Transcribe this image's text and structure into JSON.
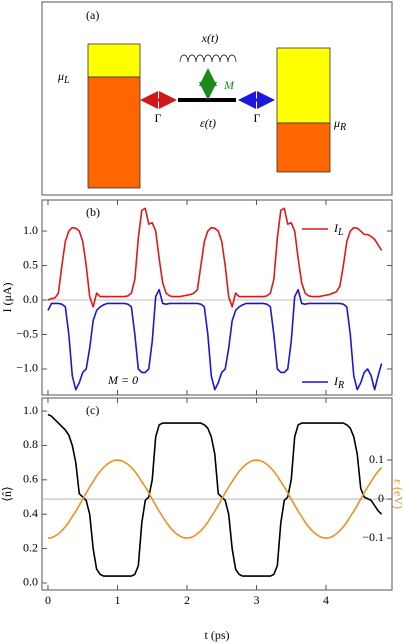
{
  "diagram": {
    "panel_label": "(a)",
    "coord": "x(t)",
    "coupling": "M",
    "level": "ε(t)",
    "gamma_left": "Γ",
    "gamma_right": "Γ",
    "mu_L": {
      "text": "μ",
      "sub": "L"
    },
    "mu_R": {
      "text": "μ",
      "sub": "R"
    }
  },
  "chart_data": [
    {
      "type": "line",
      "panel_label": "(b)",
      "ylabel": "I (μA)",
      "annotation": "M = 0",
      "xlim": [
        -0.086,
        4.95
      ],
      "xticks": [
        0,
        1,
        2,
        3,
        4
      ],
      "xtick_labels": false,
      "ylim": [
        -1.377,
        1.45
      ],
      "yticks": [
        {
          "value": -1,
          "label": "−1.0"
        },
        {
          "value": -0.5,
          "label": "−0.5"
        },
        {
          "value": 0,
          "label": "0.0"
        },
        {
          "value": 0.5,
          "label": "0.5"
        },
        {
          "value": 1,
          "label": "1.0"
        }
      ],
      "zero_line": true,
      "x": [
        0,
        0.05,
        0.1,
        0.15,
        0.2,
        0.25,
        0.3,
        0.35,
        0.4,
        0.45,
        0.5,
        0.55,
        0.6,
        0.65,
        0.7,
        0.75,
        0.8,
        0.85,
        0.9,
        0.95,
        1,
        1.05,
        1.1,
        1.15,
        1.2,
        1.25,
        1.3,
        1.35,
        1.4,
        1.45,
        1.5,
        1.55,
        1.6,
        1.65,
        1.7,
        1.75,
        1.8,
        1.85,
        1.9,
        1.95,
        2,
        2.05,
        2.1,
        2.15,
        2.2,
        2.25,
        2.3,
        2.35,
        2.4,
        2.45,
        2.5,
        2.55,
        2.6,
        2.65,
        2.7,
        2.75,
        2.8,
        2.85,
        2.9,
        2.95,
        3,
        3.05,
        3.1,
        3.15,
        3.2,
        3.25,
        3.3,
        3.35,
        3.4,
        3.45,
        3.5,
        3.55,
        3.6,
        3.65,
        3.7,
        3.75,
        3.8,
        3.85,
        3.9,
        3.95,
        4,
        4.05,
        4.1,
        4.15,
        4.2,
        4.25,
        4.3,
        4.35,
        4.4,
        4.45,
        4.5,
        4.55,
        4.6,
        4.65,
        4.7,
        4.75,
        4.8
      ],
      "series": [
        {
          "name": "I",
          "sub": "L",
          "color": "#e01818",
          "legend_loc": "upper right",
          "values": [
            0,
            0.02,
            0.03,
            0.1,
            0.5,
            0.85,
            1.0,
            1.05,
            1.04,
            1.0,
            0.85,
            0.5,
            0.05,
            -0.1,
            0.1,
            0.05,
            0.05,
            0.05,
            0.05,
            0.05,
            0.05,
            0.05,
            0.05,
            0.06,
            0.1,
            0.3,
            0.9,
            1.3,
            1.33,
            1.1,
            1.12,
            1.0,
            0.6,
            0.25,
            0.1,
            0.06,
            0.05,
            0.05,
            0.05,
            0.06,
            0.07,
            0.08,
            0.1,
            0.15,
            0.5,
            0.85,
            1.0,
            1.05,
            1.04,
            1.0,
            0.85,
            0.5,
            0.05,
            -0.1,
            0.1,
            0.05,
            0.05,
            0.05,
            0.05,
            0.05,
            0.05,
            0.05,
            0.05,
            0.06,
            0.1,
            0.3,
            0.9,
            1.3,
            1.33,
            1.1,
            1.12,
            1.0,
            0.6,
            0.25,
            0.1,
            0.06,
            0.05,
            0.05,
            0.05,
            0.06,
            0.07,
            0.08,
            0.1,
            0.12,
            0.2,
            0.5,
            0.85,
            1.0,
            1.05,
            1.04,
            1.0,
            0.95,
            0.95,
            0.92,
            0.88,
            0.8,
            0.72
          ]
        },
        {
          "name": "I",
          "sub": "R",
          "color": "#1818d8",
          "legend_loc": "lower right",
          "values": [
            -0.15,
            -0.05,
            -0.05,
            -0.05,
            -0.06,
            -0.1,
            -0.5,
            -1.1,
            -1.3,
            -1.2,
            -1.05,
            -1.0,
            -0.7,
            -0.3,
            -0.15,
            -0.1,
            -0.07,
            -0.05,
            -0.05,
            -0.05,
            -0.05,
            -0.05,
            -0.05,
            -0.06,
            -0.1,
            -0.5,
            -1.0,
            -1.05,
            -1.05,
            -1.0,
            -0.6,
            0.05,
            0.15,
            -0.05,
            -0.06,
            -0.05,
            -0.05,
            -0.05,
            -0.05,
            -0.05,
            -0.05,
            -0.05,
            -0.05,
            -0.05,
            -0.06,
            -0.1,
            -0.5,
            -1.1,
            -1.3,
            -1.2,
            -1.05,
            -1.0,
            -0.7,
            -0.3,
            -0.15,
            -0.1,
            -0.07,
            -0.05,
            -0.05,
            -0.05,
            -0.05,
            -0.05,
            -0.05,
            -0.06,
            -0.1,
            -0.5,
            -1.0,
            -1.05,
            -1.05,
            -1.0,
            -0.6,
            0.05,
            0.15,
            -0.05,
            -0.06,
            -0.05,
            -0.05,
            -0.05,
            -0.05,
            -0.05,
            -0.05,
            -0.05,
            -0.05,
            -0.05,
            -0.05,
            -0.06,
            -0.1,
            -0.5,
            -1.1,
            -1.3,
            -1.2,
            -1.05,
            -1.0,
            -1.1,
            -1.3,
            -1.1,
            -0.92
          ]
        }
      ]
    },
    {
      "type": "line",
      "panel_label": "(c)",
      "xlabel": "t (ps)",
      "ylabel": "⟨n̂⟩",
      "y2label": "ε (eV)",
      "y2label_color": "#f0901e",
      "xlim": [
        -0.086,
        4.95
      ],
      "xticks": [
        0,
        1,
        2,
        3,
        4
      ],
      "xtick_labels": true,
      "ylim": [
        -0.041,
        1.076
      ],
      "yticks": [
        {
          "value": 0,
          "label": "0.0"
        },
        0.2,
        0.4,
        0.6,
        0.8,
        {
          "value": 1,
          "label": "1.0"
        }
      ],
      "y2lim": [
        -0.233,
        0.259
      ],
      "y2ticks": [
        {
          "value": -0.1,
          "label": "−0.1"
        },
        0,
        0.1
      ],
      "zero_line": true,
      "zero_axis": "y2",
      "x": [
        0,
        0.05,
        0.1,
        0.15,
        0.2,
        0.25,
        0.3,
        0.35,
        0.4,
        0.45,
        0.5,
        0.55,
        0.6,
        0.65,
        0.7,
        0.75,
        0.8,
        0.85,
        0.9,
        0.95,
        1,
        1.05,
        1.1,
        1.15,
        1.2,
        1.25,
        1.3,
        1.35,
        1.4,
        1.45,
        1.5,
        1.55,
        1.6,
        1.65,
        1.7,
        1.75,
        1.8,
        1.85,
        1.9,
        1.95,
        2,
        2.05,
        2.1,
        2.15,
        2.2,
        2.25,
        2.3,
        2.35,
        2.4,
        2.45,
        2.5,
        2.55,
        2.6,
        2.65,
        2.7,
        2.75,
        2.8,
        2.85,
        2.9,
        2.95,
        3,
        3.05,
        3.1,
        3.15,
        3.2,
        3.25,
        3.3,
        3.35,
        3.4,
        3.45,
        3.5,
        3.55,
        3.6,
        3.65,
        3.7,
        3.75,
        3.8,
        3.85,
        3.9,
        3.95,
        4,
        4.05,
        4.1,
        4.15,
        4.2,
        4.25,
        4.3,
        4.35,
        4.4,
        4.45,
        4.5,
        4.55,
        4.6,
        4.65,
        4.7,
        4.75,
        4.8
      ],
      "series": [
        {
          "color": "#000000",
          "values": [
            0.98,
            0.97,
            0.95,
            0.93,
            0.91,
            0.89,
            0.86,
            0.8,
            0.7,
            0.52,
            0.5,
            0.48,
            0.4,
            0.2,
            0.08,
            0.05,
            0.04,
            0.04,
            0.04,
            0.04,
            0.04,
            0.04,
            0.04,
            0.04,
            0.04,
            0.05,
            0.1,
            0.35,
            0.48,
            0.5,
            0.6,
            0.85,
            0.92,
            0.93,
            0.93,
            0.93,
            0.93,
            0.93,
            0.93,
            0.93,
            0.93,
            0.93,
            0.93,
            0.93,
            0.93,
            0.92,
            0.9,
            0.85,
            0.75,
            0.52,
            0.5,
            0.48,
            0.4,
            0.2,
            0.08,
            0.05,
            0.04,
            0.04,
            0.04,
            0.04,
            0.04,
            0.04,
            0.04,
            0.04,
            0.04,
            0.05,
            0.1,
            0.35,
            0.48,
            0.5,
            0.6,
            0.85,
            0.92,
            0.93,
            0.93,
            0.93,
            0.93,
            0.93,
            0.93,
            0.93,
            0.93,
            0.93,
            0.93,
            0.93,
            0.93,
            0.93,
            0.92,
            0.9,
            0.85,
            0.75,
            0.55,
            0.5,
            0.49,
            0.48,
            0.45,
            0.42,
            0.4
          ]
        },
        {
          "color": "#f0901e",
          "axis": "y2",
          "values": [
            -0.1,
            -0.099,
            -0.095,
            -0.089,
            -0.081,
            -0.071,
            -0.059,
            -0.045,
            -0.031,
            -0.016,
            0,
            0.016,
            0.031,
            0.045,
            0.059,
            0.071,
            0.081,
            0.089,
            0.095,
            0.099,
            0.1,
            0.099,
            0.095,
            0.089,
            0.081,
            0.071,
            0.059,
            0.045,
            0.031,
            0.016,
            0,
            -0.016,
            -0.031,
            -0.045,
            -0.059,
            -0.071,
            -0.081,
            -0.089,
            -0.095,
            -0.099,
            -0.1,
            -0.099,
            -0.095,
            -0.089,
            -0.081,
            -0.071,
            -0.059,
            -0.045,
            -0.031,
            -0.016,
            0,
            0.016,
            0.031,
            0.045,
            0.059,
            0.071,
            0.081,
            0.089,
            0.095,
            0.099,
            0.1,
            0.099,
            0.095,
            0.089,
            0.081,
            0.071,
            0.059,
            0.045,
            0.031,
            0.016,
            0,
            -0.016,
            -0.031,
            -0.045,
            -0.059,
            -0.071,
            -0.081,
            -0.089,
            -0.095,
            -0.099,
            -0.1,
            -0.099,
            -0.095,
            -0.089,
            -0.081,
            -0.071,
            -0.059,
            -0.045,
            -0.031,
            -0.016,
            0,
            0.016,
            0.031,
            0.045,
            0.059,
            0.071,
            0.081
          ]
        }
      ]
    }
  ]
}
